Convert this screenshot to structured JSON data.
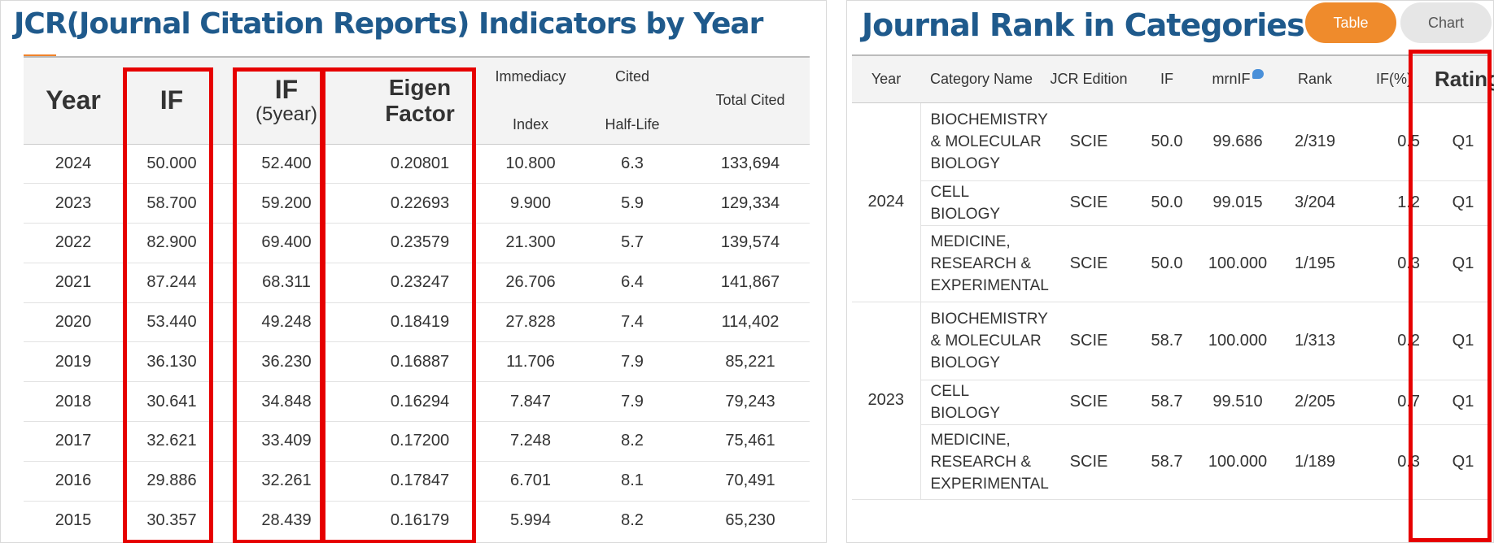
{
  "jcr": {
    "title": "JCR(Journal Citation Reports) Indicators by Year",
    "headers": {
      "year": "Year",
      "if": "IF",
      "if5_main": "IF",
      "if5_sub": "(5year)",
      "eigen": "Eigen Factor",
      "immediacy_top": "Immediacy",
      "immediacy_bottom": "Index",
      "cited_top": "Cited",
      "cited_bottom": "Half-Life",
      "total_cited": "Total Cited"
    },
    "rows": [
      {
        "year": "2024",
        "if": "50.000",
        "if5": "52.400",
        "eigen": "0.20801",
        "immediacy": "10.800",
        "half_life": "6.3",
        "total": "133,694"
      },
      {
        "year": "2023",
        "if": "58.700",
        "if5": "59.200",
        "eigen": "0.22693",
        "immediacy": "9.900",
        "half_life": "5.9",
        "total": "129,334"
      },
      {
        "year": "2022",
        "if": "82.900",
        "if5": "69.400",
        "eigen": "0.23579",
        "immediacy": "21.300",
        "half_life": "5.7",
        "total": "139,574"
      },
      {
        "year": "2021",
        "if": "87.244",
        "if5": "68.311",
        "eigen": "0.23247",
        "immediacy": "26.706",
        "half_life": "6.4",
        "total": "141,867"
      },
      {
        "year": "2020",
        "if": "53.440",
        "if5": "49.248",
        "eigen": "0.18419",
        "immediacy": "27.828",
        "half_life": "7.4",
        "total": "114,402"
      },
      {
        "year": "2019",
        "if": "36.130",
        "if5": "36.230",
        "eigen": "0.16887",
        "immediacy": "11.706",
        "half_life": "7.9",
        "total": "85,221"
      },
      {
        "year": "2018",
        "if": "30.641",
        "if5": "34.848",
        "eigen": "0.16294",
        "immediacy": "7.847",
        "half_life": "7.9",
        "total": "79,243"
      },
      {
        "year": "2017",
        "if": "32.621",
        "if5": "33.409",
        "eigen": "0.17200",
        "immediacy": "7.248",
        "half_life": "8.2",
        "total": "75,461"
      },
      {
        "year": "2016",
        "if": "29.886",
        "if5": "32.261",
        "eigen": "0.17847",
        "immediacy": "6.701",
        "half_life": "8.1",
        "total": "70,491"
      },
      {
        "year": "2015",
        "if": "30.357",
        "if5": "28.439",
        "eigen": "0.16179",
        "immediacy": "5.994",
        "half_life": "8.2",
        "total": "65,230"
      }
    ]
  },
  "rank": {
    "title": "Journal Rank in Categories",
    "tabs": {
      "table": "Table",
      "chart": "Chart"
    },
    "headers": {
      "year": "Year",
      "category": "Category Name",
      "edition": "JCR Edition",
      "if": "IF",
      "mrnif": "mrnIF",
      "rank": "Rank",
      "if_pct": "IF(%)",
      "rating": "Rating"
    },
    "groups": [
      {
        "year": "2024",
        "rows": [
          {
            "category": "BIOCHEMISTRY & MOLECULAR BIOLOGY",
            "edition": "SCIE",
            "if": "50.0",
            "mrnif": "99.686",
            "rank": "2/319",
            "if_pct": "0.5",
            "rating": "Q1"
          },
          {
            "category": "CELL BIOLOGY",
            "edition": "SCIE",
            "if": "50.0",
            "mrnif": "99.015",
            "rank": "3/204",
            "if_pct": "1.2",
            "rating": "Q1"
          },
          {
            "category": "MEDICINE, RESEARCH & EXPERIMENTAL",
            "edition": "SCIE",
            "if": "50.0",
            "mrnif": "100.000",
            "rank": "1/195",
            "if_pct": "0.3",
            "rating": "Q1"
          }
        ]
      },
      {
        "year": "2023",
        "rows": [
          {
            "category": "BIOCHEMISTRY & MOLECULAR BIOLOGY",
            "edition": "SCIE",
            "if": "58.7",
            "mrnif": "100.000",
            "rank": "1/313",
            "if_pct": "0.2",
            "rating": "Q1"
          },
          {
            "category": "CELL BIOLOGY",
            "edition": "SCIE",
            "if": "58.7",
            "mrnif": "99.510",
            "rank": "2/205",
            "if_pct": "0.7",
            "rating": "Q1"
          },
          {
            "category": "MEDICINE, RESEARCH & EXPERIMENTAL",
            "edition": "SCIE",
            "if": "58.7",
            "mrnif": "100.000",
            "rank": "1/189",
            "if_pct": "0.3",
            "rating": "Q1"
          }
        ]
      }
    ]
  },
  "colors": {
    "title_blue": "#1f5a8c",
    "accent_orange": "#ef8b2c",
    "highlight_red": "#e60000"
  }
}
